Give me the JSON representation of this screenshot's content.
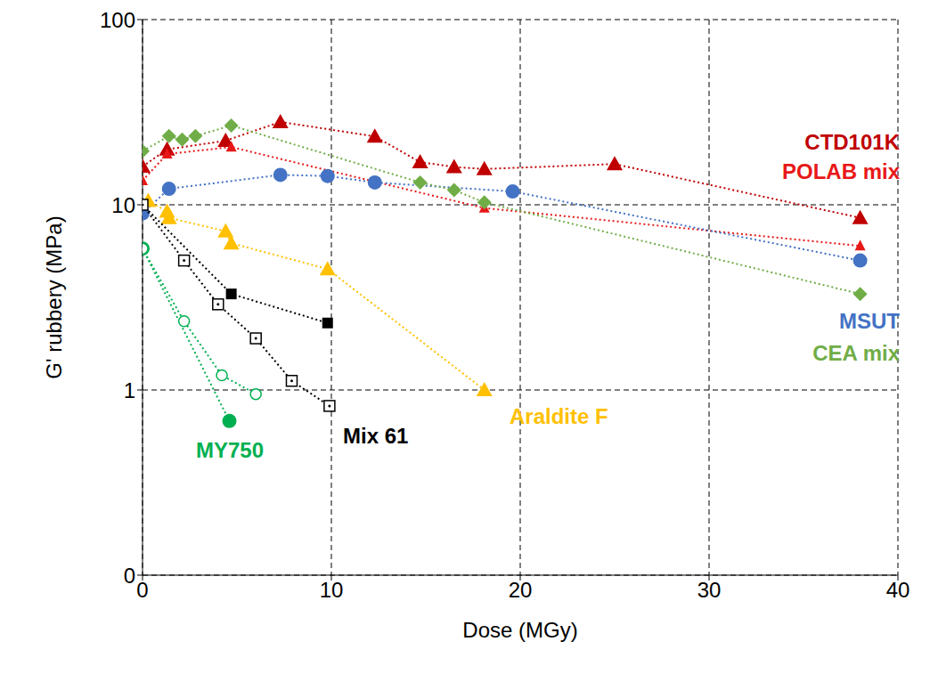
{
  "chart_data": {
    "type": "scatter",
    "x_label": "Dose (MGy)",
    "y_label": "G' rubbery (MPa)",
    "log": "y",
    "grid": true,
    "tick_labels": true,
    "xlim": [
      0,
      40
    ],
    "xticks": [
      0,
      10,
      20,
      30,
      40
    ],
    "ylim": [
      0.1,
      100
    ],
    "yticks": [
      {
        "value": 0.1,
        "label": "0"
      },
      1,
      10,
      100
    ],
    "line_style": "dotted",
    "series": [
      {
        "name": "CTD101K",
        "color": "#c00000",
        "marker": "triangle",
        "x": [
          0,
          1.3,
          4.4,
          7.3,
          12.3,
          14.7,
          16.5,
          18.1,
          25,
          38
        ],
        "values": [
          16.1,
          19.9,
          22.2,
          28,
          23.4,
          17,
          16,
          15.6,
          16.6,
          8.5
        ]
      },
      {
        "name": "POLAB mix",
        "color": "#e81818",
        "marker": "small_triangle",
        "x": [
          0,
          1.3,
          4.7,
          18.1,
          38
        ],
        "values": [
          13.5,
          18.8,
          20.5,
          9.6,
          6
        ]
      },
      {
        "name": "MSUT",
        "color": "#4472c4",
        "marker": "circle",
        "x": [
          0,
          1.4,
          7.3,
          9.8,
          12.3,
          19.6,
          38
        ],
        "values": [
          9,
          12.2,
          14.5,
          14.3,
          13.2,
          11.8,
          5
        ]
      },
      {
        "name": "CEA mix",
        "color": "#70ad47",
        "marker": "diamond",
        "x": [
          0,
          1.4,
          2.1,
          2.8,
          4.7,
          14.7,
          16.5,
          18.1,
          38
        ],
        "values": [
          19.5,
          23.5,
          22.5,
          23.5,
          26.8,
          13.2,
          12,
          10.3,
          3.3
        ]
      },
      {
        "name": "Araldite F",
        "color": "#ffc000",
        "marker": "triangle",
        "x": [
          0.3,
          1.3,
          1.4,
          4.4,
          4.7,
          9.8,
          18.1
        ],
        "values": [
          10.5,
          9.2,
          8.5,
          7.2,
          6.2,
          4.5,
          1.0
        ]
      },
      {
        "name": "Mix 61",
        "color": "#000000",
        "marker": "square",
        "x": [
          0,
          4.7,
          9.8
        ],
        "values": [
          10,
          3.3,
          2.3
        ]
      },
      {
        "name": "Mix 61",
        "color": "#000000",
        "marker": "square_open",
        "x": [
          0,
          2.2,
          4.0,
          6.0,
          7.9,
          9.9
        ],
        "values": [
          10,
          5,
          2.9,
          1.9,
          1.12,
          0.82
        ]
      },
      {
        "name": "MY750",
        "color": "#00b050",
        "marker": "circle",
        "x": [
          0,
          4.6
        ],
        "values": [
          5.8,
          0.68
        ]
      },
      {
        "name": "MY750",
        "color": "#00b050",
        "marker": "circle_open",
        "x": [
          0,
          2.2,
          4.2,
          6.0
        ],
        "values": [
          5.8,
          2.35,
          1.2,
          0.95
        ]
      }
    ]
  }
}
